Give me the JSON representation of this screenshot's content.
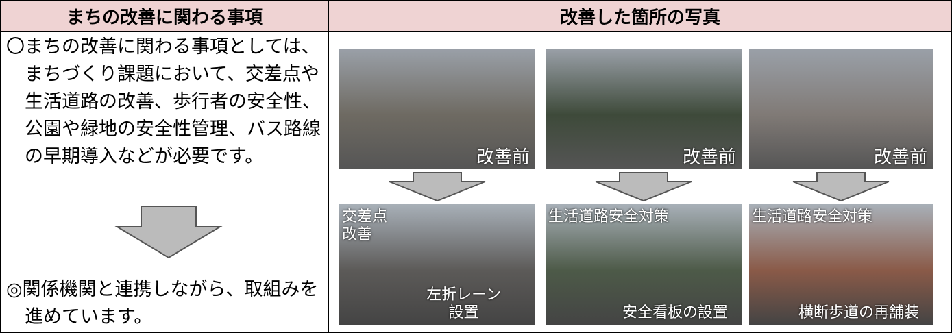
{
  "header": {
    "left": "まちの改善に関わる事項",
    "right": "改善した箇所の写真"
  },
  "left": {
    "description": "〇まちの改善に関わる事項としては、まちづくり課題において、交差点や生活道路の改善、歩行者の安全性、公園や緑地の安全性管理、バス路線の早期導入などが必要です。",
    "conclusion": "◎関係機関と連携しながら、取組みを進めています。"
  },
  "photos": [
    {
      "before": "改善前",
      "after": [
        "交差点\n改善",
        "左折レーン\n設置"
      ]
    },
    {
      "before": "改善前",
      "after": [
        "生活道路安全対策",
        "安全看板の設置"
      ]
    },
    {
      "before": "改善前",
      "after": [
        "生活道路安全対策",
        "横断歩道の再舗装"
      ]
    }
  ]
}
